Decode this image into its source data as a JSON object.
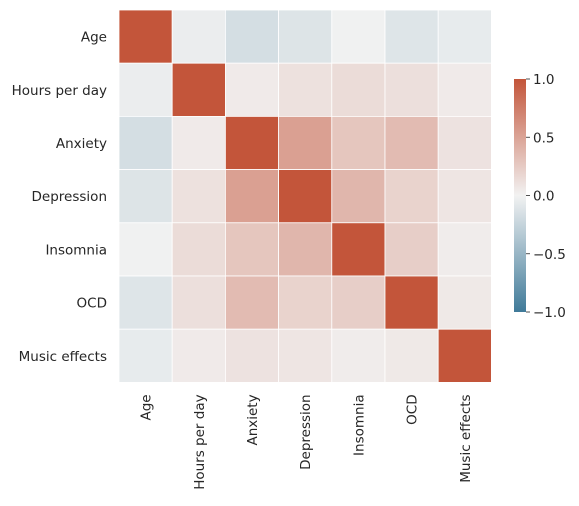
{
  "chart_data": {
    "type": "heatmap",
    "title": "",
    "xlabel": "",
    "ylabel": "",
    "rows": [
      "Age",
      "Hours per day",
      "Anxiety",
      "Depression",
      "Insomnia",
      "OCD",
      "Music effects"
    ],
    "columns": [
      "Age",
      "Hours per day",
      "Anxiety",
      "Depression",
      "Insomnia",
      "OCD",
      "Music effects"
    ],
    "values": [
      [
        1.0,
        -0.04,
        -0.17,
        -0.12,
        -0.01,
        -0.11,
        -0.06
      ],
      [
        -0.04,
        1.0,
        0.05,
        0.11,
        0.14,
        0.12,
        0.05
      ],
      [
        -0.17,
        0.05,
        1.0,
        0.52,
        0.28,
        0.35,
        0.1
      ],
      [
        -0.12,
        0.11,
        0.52,
        1.0,
        0.38,
        0.2,
        0.08
      ],
      [
        -0.01,
        0.14,
        0.28,
        0.38,
        1.0,
        0.23,
        0.04
      ],
      [
        -0.11,
        0.12,
        0.35,
        0.2,
        0.23,
        1.0,
        0.06
      ],
      [
        -0.06,
        0.05,
        0.1,
        0.08,
        0.04,
        0.06,
        1.0
      ]
    ],
    "colorbar": {
      "vmin": -1.0,
      "vmax": 1.0,
      "ticks": [
        -1.0,
        -0.5,
        0.0,
        0.5,
        1.0
      ],
      "tick_labels": [
        "−1.0",
        "−0.5",
        "0.0",
        "0.5",
        "1.0"
      ],
      "colormap": "diverging blue-white-red",
      "low_color": "#3f7a99",
      "mid_color": "#f2f2f2",
      "high_color": "#c3553a"
    },
    "grid_lines": true,
    "grid_color": "#ffffff"
  }
}
